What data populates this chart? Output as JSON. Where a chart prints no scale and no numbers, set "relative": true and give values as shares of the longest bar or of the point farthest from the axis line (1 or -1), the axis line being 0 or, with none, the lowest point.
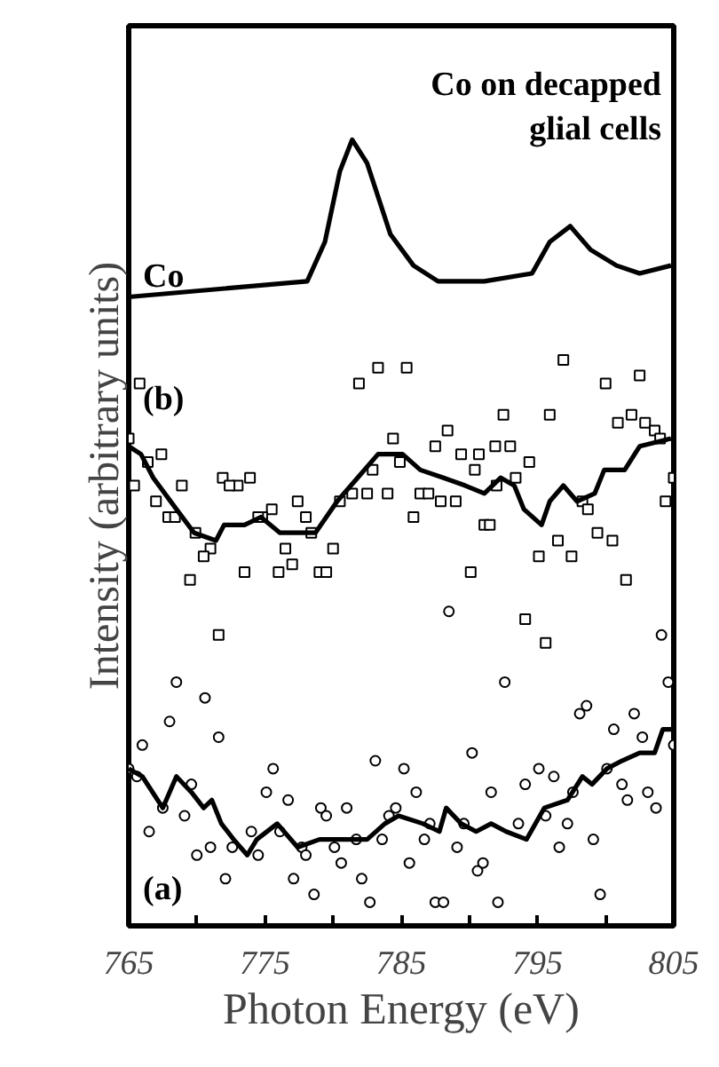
{
  "chart_data": {
    "type": "line",
    "relative": true,
    "xlabel": "Photon Energy (eV)",
    "ylabel": "Intensity (arbitrary units)",
    "xlim": [
      765,
      805
    ],
    "xticks": [
      765,
      {
        "value": 770,
        "label": null
      },
      775,
      {
        "value": 780,
        "label": null
      },
      785,
      {
        "value": 790,
        "label": null
      },
      795,
      {
        "value": 800,
        "label": null
      },
      805
    ],
    "grid": false,
    "tick_labels": "x",
    "title": "Co on decapped\nglial cells",
    "series": [
      {
        "name": "Co",
        "color": "#000000",
        "marker": "none",
        "x": [
          765,
          778.1,
          779.4,
          780.5,
          781.4,
          782.5,
          784.2,
          785.9,
          787.7,
          791.1,
          794.6,
          795.9,
          797.4,
          798.9,
          800.8,
          802.5,
          804.8
        ],
        "values": [
          0.8,
          0.82,
          0.87,
          0.96,
          1.0,
          0.97,
          0.88,
          0.84,
          0.82,
          0.82,
          0.83,
          0.87,
          0.89,
          0.86,
          0.84,
          0.83,
          0.84
        ]
      },
      {
        "name": "(b)",
        "type": "scatter",
        "color": "#000000",
        "marker": "square",
        "x": [
          765.8,
          781.9,
          783.3,
          785.4,
          796.9,
          800.0,
          802.5,
          765.0,
          767.4,
          766.4,
          765.4,
          767.0,
          767.9,
          768.4,
          768.9,
          769.9,
          771.9,
          773.0,
          772.4,
          773.9,
          771.0,
          770.5,
          769.5,
          773.5,
          777.4,
          778.0,
          778.4,
          775.5,
          774.8,
          774.5,
          776.5,
          777.0,
          776.0,
          779.0,
          779.5,
          780.0,
          771.6,
          780.5,
          781.4,
          782.5,
          782.9,
          784.0,
          784.4,
          784.9,
          785.9,
          786.4,
          787.0,
          787.9,
          789.0,
          787.5,
          788.4,
          789.4,
          790.4,
          790.7,
          791.9,
          793.0,
          792.5,
          794.4,
          793.4,
          792.0,
          791.1,
          791.5,
          790.1,
          794.1,
          795.6,
          795.9,
          795.1,
          796.5,
          797.5,
          798.3,
          798.7,
          799.4,
          800.5,
          801.5,
          800.9,
          801.9,
          802.9,
          803.6,
          804.0,
          804.4,
          805.0
        ],
        "values": [
          0.69,
          0.69,
          0.71,
          0.71,
          0.72,
          0.69,
          0.7,
          0.62,
          0.6,
          0.59,
          0.56,
          0.54,
          0.52,
          0.52,
          0.56,
          0.5,
          0.57,
          0.56,
          0.56,
          0.57,
          0.48,
          0.47,
          0.44,
          0.45,
          0.54,
          0.52,
          0.5,
          0.53,
          0.52,
          0.52,
          0.48,
          0.46,
          0.45,
          0.45,
          0.45,
          0.48,
          0.37,
          0.54,
          0.55,
          0.55,
          0.58,
          0.55,
          0.62,
          0.59,
          0.52,
          0.55,
          0.55,
          0.54,
          0.54,
          0.61,
          0.63,
          0.6,
          0.58,
          0.6,
          0.61,
          0.61,
          0.65,
          0.59,
          0.57,
          0.56,
          0.51,
          0.51,
          0.45,
          0.39,
          0.36,
          0.65,
          0.47,
          0.49,
          0.47,
          0.54,
          0.53,
          0.5,
          0.49,
          0.44,
          0.64,
          0.65,
          0.64,
          0.63,
          0.62,
          0.54,
          0.57
        ]
      },
      {
        "color": "#000000",
        "marker": "none",
        "x": [
          765,
          765.9,
          766.8,
          768.5,
          769.8,
          771.4,
          772.0,
          773.5,
          774.7,
          776.1,
          777.4,
          778.7,
          780.3,
          781.8,
          783.3,
          785.1,
          786.4,
          788.1,
          789.7,
          791.1,
          792.3,
          793.3,
          794.0,
          795.3,
          795.9,
          796.9,
          797.9,
          799.2,
          799.9,
          801.4,
          802.5,
          804.8
        ],
        "values": [
          0.61,
          0.6,
          0.57,
          0.53,
          0.5,
          0.49,
          0.51,
          0.51,
          0.52,
          0.5,
          0.5,
          0.5,
          0.54,
          0.57,
          0.6,
          0.6,
          0.58,
          0.57,
          0.56,
          0.55,
          0.57,
          0.56,
          0.53,
          0.51,
          0.54,
          0.56,
          0.54,
          0.55,
          0.58,
          0.58,
          0.61,
          0.62
        ]
      },
      {
        "name": "(a)",
        "type": "scatter",
        "color": "#000000",
        "marker": "circle",
        "x": [
          788.5,
          792.6,
          768.5,
          770.6,
          768.0,
          798.1,
          798.6,
          802.1,
          804.1,
          804.6,
          800.6,
          766.0,
          771.6,
          765.0,
          765.6,
          766.5,
          767.5,
          769.1,
          769.6,
          770.0,
          771.0,
          772.1,
          772.6,
          774.5,
          774.0,
          775.1,
          775.6,
          776.7,
          776.1,
          777.1,
          777.7,
          778.0,
          778.6,
          779.1,
          779.5,
          780.1,
          780.6,
          781.0,
          781.7,
          782.1,
          782.7,
          783.1,
          783.6,
          784.1,
          784.6,
          785.2,
          785.6,
          786.1,
          786.7,
          787.1,
          787.5,
          788.1,
          789.1,
          789.6,
          790.2,
          790.6,
          791.0,
          791.6,
          792.1,
          793.6,
          794.1,
          795.1,
          795.6,
          796.2,
          796.6,
          797.2,
          797.6,
          799.1,
          799.6,
          800.1,
          801.2,
          801.6,
          802.7,
          803.1,
          803.7,
          805.0
        ],
        "values": [
          0.4,
          0.31,
          0.31,
          0.29,
          0.26,
          0.27,
          0.28,
          0.27,
          0.37,
          0.31,
          0.25,
          0.23,
          0.24,
          0.2,
          0.19,
          0.12,
          0.15,
          0.14,
          0.18,
          0.09,
          0.1,
          0.06,
          0.1,
          0.09,
          0.12,
          0.17,
          0.2,
          0.16,
          0.12,
          0.06,
          0.1,
          0.09,
          0.04,
          0.15,
          0.14,
          0.1,
          0.08,
          0.15,
          0.11,
          0.06,
          0.03,
          0.21,
          0.11,
          0.14,
          0.15,
          0.2,
          0.08,
          0.17,
          0.11,
          0.13,
          0.03,
          0.03,
          0.1,
          0.13,
          0.22,
          0.07,
          0.08,
          0.17,
          0.03,
          0.13,
          0.18,
          0.2,
          0.14,
          0.19,
          0.1,
          0.13,
          0.17,
          0.11,
          0.04,
          0.2,
          0.18,
          0.16,
          0.24,
          0.17,
          0.15,
          0.23
        ]
      },
      {
        "color": "#000000",
        "marker": "none",
        "x": [
          765.0,
          766.0,
          767.5,
          768.5,
          769.6,
          770.5,
          771.1,
          771.8,
          772.7,
          773.7,
          774.4,
          775.9,
          777.4,
          779.0,
          780.1,
          781.1,
          782.5,
          783.8,
          784.8,
          786.6,
          787.8,
          788.3,
          789.4,
          790.5,
          791.6,
          792.7,
          794.2,
          795.5,
          797.2,
          798.3,
          799.0,
          800.1,
          801.2,
          802.5,
          803.6,
          804.2,
          805.0
        ],
        "values": [
          0.2,
          0.19,
          0.15,
          0.19,
          0.17,
          0.15,
          0.16,
          0.13,
          0.11,
          0.09,
          0.11,
          0.13,
          0.1,
          0.11,
          0.11,
          0.11,
          0.11,
          0.13,
          0.14,
          0.13,
          0.12,
          0.15,
          0.13,
          0.12,
          0.13,
          0.12,
          0.11,
          0.15,
          0.16,
          0.19,
          0.18,
          0.2,
          0.21,
          0.22,
          0.22,
          0.25,
          0.25
        ]
      }
    ]
  }
}
